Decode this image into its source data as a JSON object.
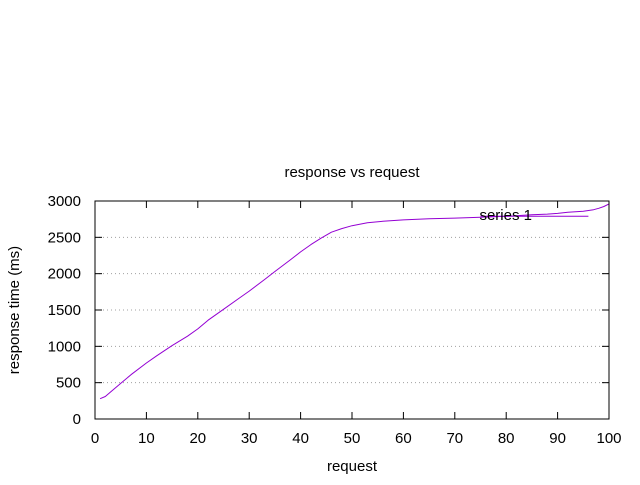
{
  "chart_data": {
    "type": "line",
    "title": "response vs request",
    "xlabel": "request",
    "ylabel": "response time (ms)",
    "xlim": [
      0,
      100
    ],
    "ylim": [
      0,
      3000
    ],
    "xticks": [
      0,
      10,
      20,
      30,
      40,
      50,
      60,
      70,
      80,
      90,
      100
    ],
    "yticks": [
      0,
      500,
      1000,
      1500,
      2000,
      2500,
      3000
    ],
    "grid": {
      "y": true,
      "x": false,
      "style": "dotted"
    },
    "legend_placement": "top-right",
    "series": [
      {
        "name": "series 1",
        "color": "#9400d3",
        "x": [
          1,
          2,
          3,
          5,
          7,
          10,
          12,
          15,
          18,
          20,
          22,
          25,
          28,
          30,
          33,
          35,
          38,
          40,
          42,
          44,
          46,
          48,
          50,
          53,
          56,
          60,
          65,
          70,
          75,
          80,
          85,
          88,
          90,
          92,
          95,
          97,
          98,
          99,
          100
        ],
        "y": [
          280,
          310,
          370,
          490,
          610,
          770,
          870,
          1010,
          1140,
          1240,
          1360,
          1510,
          1660,
          1760,
          1920,
          2030,
          2190,
          2300,
          2400,
          2490,
          2570,
          2620,
          2660,
          2700,
          2720,
          2740,
          2755,
          2765,
          2775,
          2790,
          2810,
          2820,
          2830,
          2845,
          2860,
          2880,
          2900,
          2925,
          2960
        ]
      }
    ],
    "extra_lines": [
      {
        "color": "#9400d3",
        "x": [
          75,
          96
        ],
        "y": [
          2790,
          2790
        ]
      }
    ]
  }
}
